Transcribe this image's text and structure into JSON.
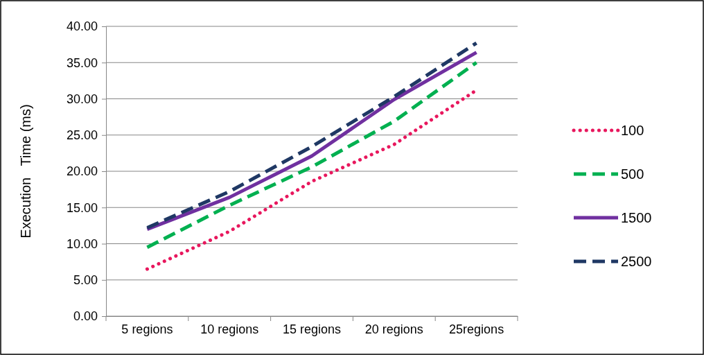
{
  "chart_data": {
    "type": "line",
    "ylabel": "Execution   Time (ms)",
    "categories": [
      "5 regions",
      "10 regions",
      "15 regions",
      "20 regions",
      "25regions"
    ],
    "series": [
      {
        "name": "100",
        "color": "#e8175d",
        "line_style": "dotted",
        "values": [
          6.5,
          11.7,
          18.6,
          23.7,
          31.2
        ]
      },
      {
        "name": "500",
        "color": "#00b050",
        "line_style": "dashed",
        "values": [
          9.5,
          15.3,
          20.6,
          26.9,
          35.0
        ]
      },
      {
        "name": "1500",
        "color": "#7030a0",
        "line_style": "solid",
        "values": [
          12.0,
          16.4,
          22.1,
          29.9,
          36.4
        ]
      },
      {
        "name": "2500",
        "color": "#1f3864",
        "line_style": "dashed",
        "values": [
          12.2,
          17.2,
          23.4,
          30.3,
          37.7
        ]
      }
    ],
    "ylim": [
      0,
      40
    ],
    "yticks": [
      {
        "value": 0,
        "label": "0.00"
      },
      {
        "value": 5,
        "label": "5.00"
      },
      {
        "value": 10,
        "label": "10.00"
      },
      {
        "value": 15,
        "label": "15.00"
      },
      {
        "value": 20,
        "label": "20.00"
      },
      {
        "value": 25,
        "label": "25.00"
      },
      {
        "value": 30,
        "label": "30.00"
      },
      {
        "value": 35,
        "label": "35.00"
      },
      {
        "value": 40,
        "label": "40.00"
      }
    ],
    "grid": "y",
    "legend": "right"
  }
}
